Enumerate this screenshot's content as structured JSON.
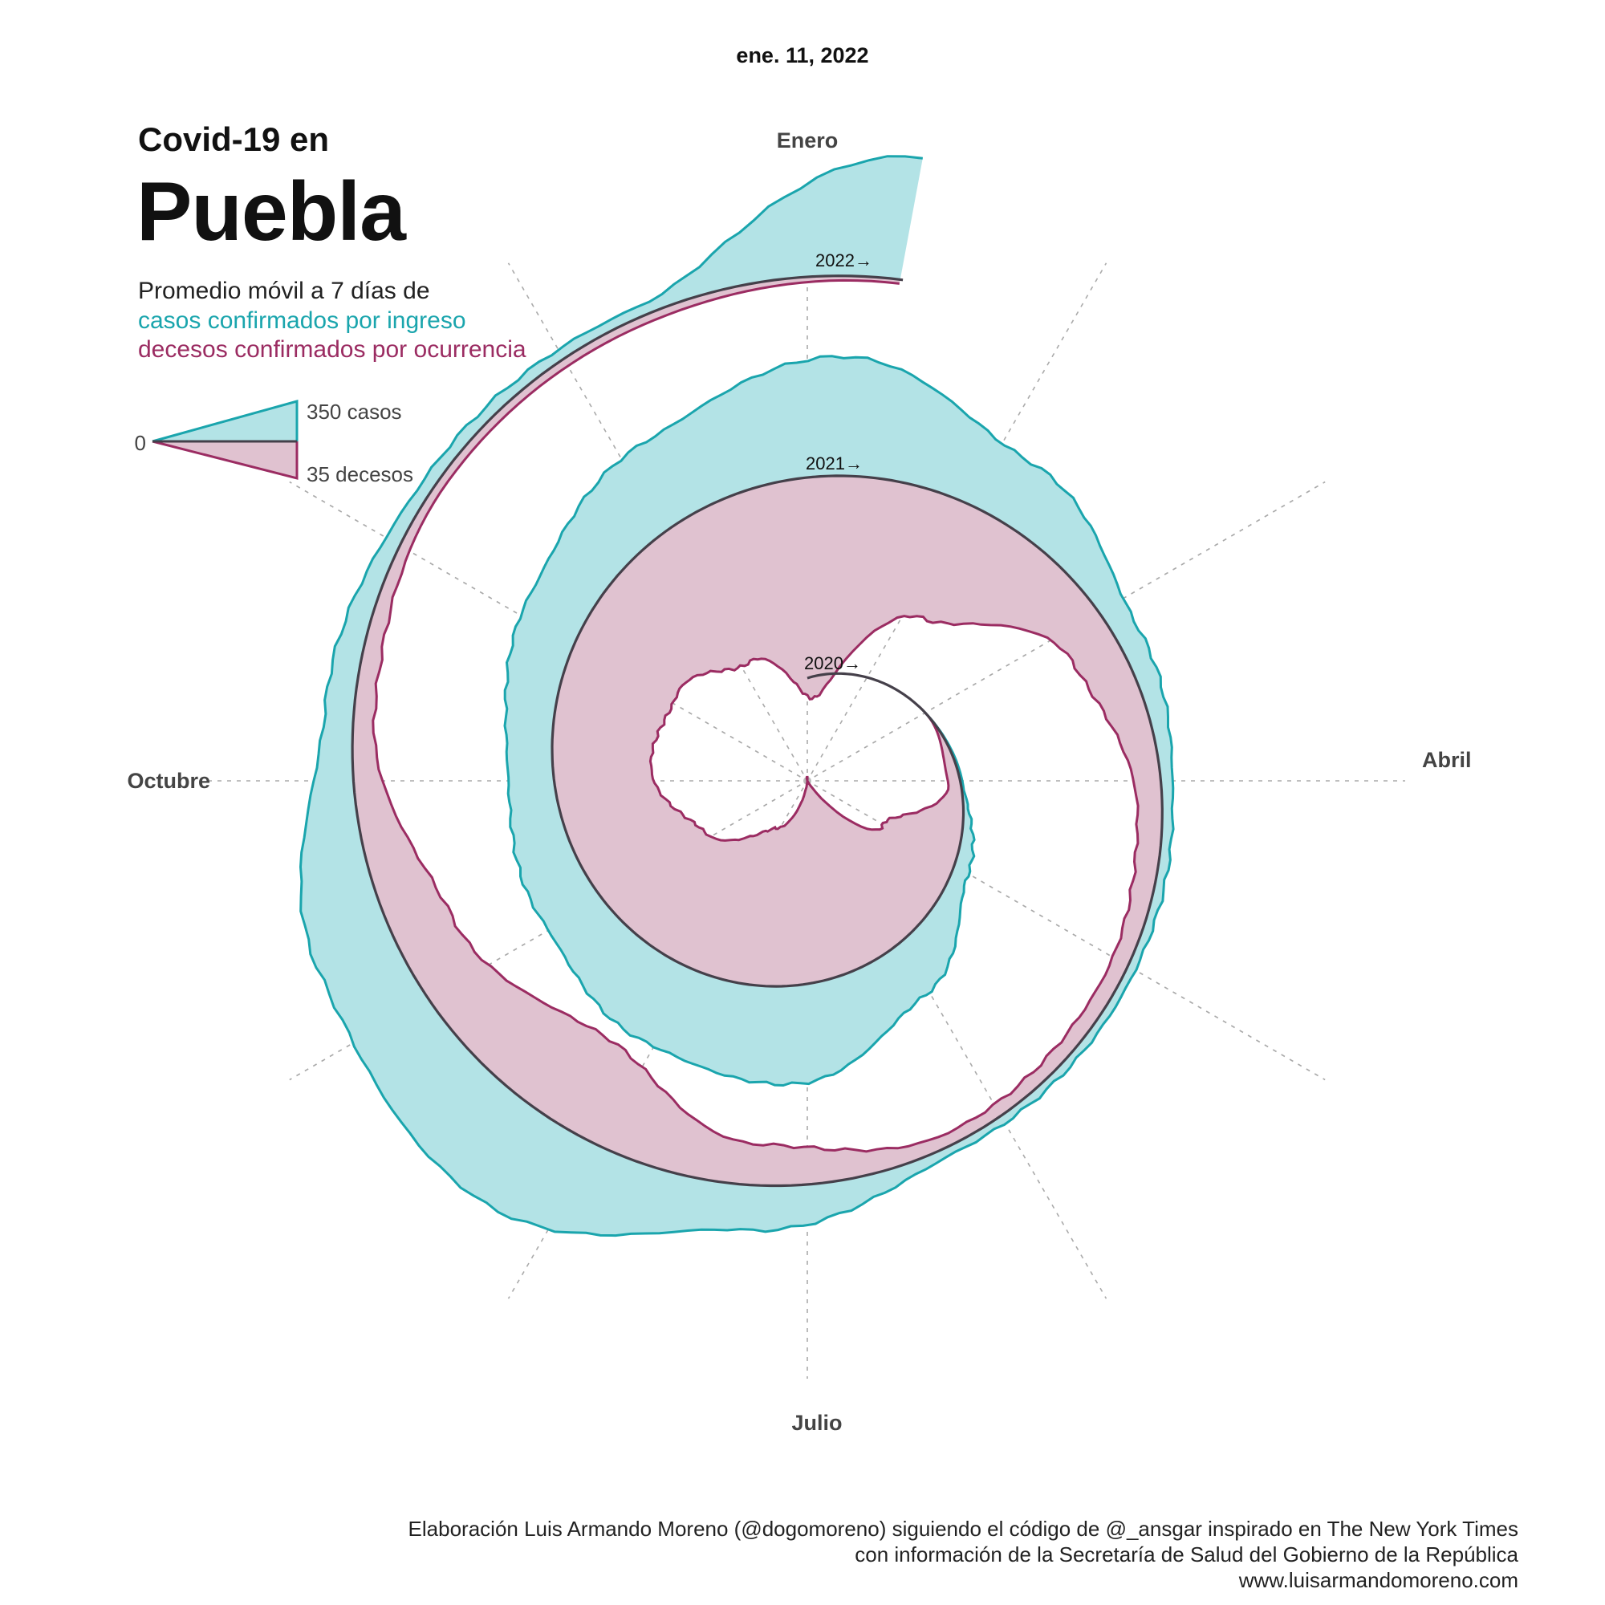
{
  "header": {
    "date": "ene. 11, 2022",
    "title_pre": "Covid-19 en",
    "title_main": "Puebla",
    "subtitle": "Promedio móvil a 7 días de",
    "cases_label": "casos confirmados por ingreso",
    "deaths_label": "decesos confirmados por ocurrencia"
  },
  "colors": {
    "cases": "#1aa5ad",
    "cases_fill": "#b3e3e6",
    "deaths": "#9b2c62",
    "deaths_fill": "#e0c2d0",
    "baseline": "#45404a",
    "grid": "#aaaaaa"
  },
  "chart_data": {
    "type": "area",
    "layout": "spiral",
    "spiral_start": "2020",
    "series": [
      {
        "name": "casos confirmados por ingreso",
        "unit": "casos",
        "scale_reference": 350
      },
      {
        "name": "decesos confirmados por ocurrencia",
        "unit": "decesos",
        "scale_reference": 35
      }
    ],
    "month_axis_labels": [
      "Enero",
      "Abril",
      "Julio",
      "Octubre"
    ],
    "year_labels": [
      "2020→",
      "2021→",
      "2022→"
    ],
    "legend": {
      "zero_label": "0",
      "cases_label": "350 casos",
      "deaths_label": "35 decesos",
      "placement": "top-left"
    },
    "monthly_cases_estimate": [
      {
        "month": "2020-03",
        "value": 0
      },
      {
        "month": "2020-04",
        "value": 5
      },
      {
        "month": "2020-05",
        "value": 40
      },
      {
        "month": "2020-06",
        "value": 140
      },
      {
        "month": "2020-07",
        "value": 240
      },
      {
        "month": "2020-08",
        "value": 210
      },
      {
        "month": "2020-09",
        "value": 150
      },
      {
        "month": "2020-10",
        "value": 110
      },
      {
        "month": "2020-11",
        "value": 150
      },
      {
        "month": "2020-12",
        "value": 210
      },
      {
        "month": "2021-01",
        "value": 290
      },
      {
        "month": "2021-02",
        "value": 160
      },
      {
        "month": "2021-03",
        "value": 60
      },
      {
        "month": "2021-04",
        "value": 25
      },
      {
        "month": "2021-05",
        "value": 20
      },
      {
        "month": "2021-06",
        "value": 20
      },
      {
        "month": "2021-07",
        "value": 110
      },
      {
        "month": "2021-08",
        "value": 260
      },
      {
        "month": "2021-09",
        "value": 200
      },
      {
        "month": "2021-10",
        "value": 70
      },
      {
        "month": "2021-11",
        "value": 30
      },
      {
        "month": "2021-12",
        "value": 25
      },
      {
        "month": "2022-01",
        "value": 300
      }
    ],
    "monthly_deaths_estimate": [
      {
        "month": "2020-03",
        "value": 0
      },
      {
        "month": "2020-04",
        "value": 3
      },
      {
        "month": "2020-05",
        "value": 20
      },
      {
        "month": "2020-06",
        "value": 45
      },
      {
        "month": "2020-07",
        "value": 50
      },
      {
        "month": "2020-08",
        "value": 40
      },
      {
        "month": "2020-09",
        "value": 30
      },
      {
        "month": "2020-10",
        "value": 24
      },
      {
        "month": "2020-11",
        "value": 28
      },
      {
        "month": "2020-12",
        "value": 38
      },
      {
        "month": "2021-01",
        "value": 54
      },
      {
        "month": "2021-02",
        "value": 30
      },
      {
        "month": "2021-03",
        "value": 12
      },
      {
        "month": "2021-04",
        "value": 6
      },
      {
        "month": "2021-05",
        "value": 4
      },
      {
        "month": "2021-06",
        "value": 3
      },
      {
        "month": "2021-07",
        "value": 10
      },
      {
        "month": "2021-08",
        "value": 24
      },
      {
        "month": "2021-09",
        "value": 15
      },
      {
        "month": "2021-10",
        "value": 5
      },
      {
        "month": "2021-11",
        "value": 2
      },
      {
        "month": "2021-12",
        "value": 2
      },
      {
        "month": "2022-01",
        "value": 1
      }
    ]
  },
  "footer": {
    "line1": "Elaboración Luis Armando Moreno (@dogomoreno) siguiendo el código de @_ansgar inspirado en The New York Times",
    "line2": "con información de la Secretaría de Salud del Gobierno de la República",
    "line3": "www.luisarmandomoreno.com"
  }
}
